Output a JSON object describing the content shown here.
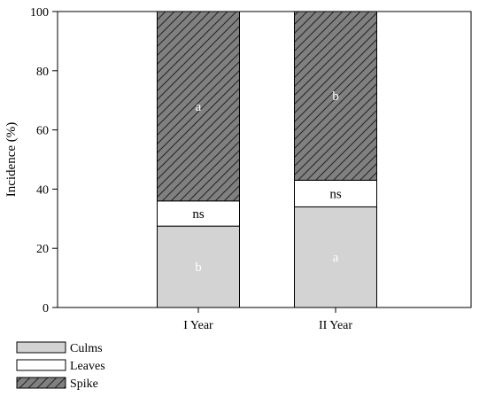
{
  "chart_data": {
    "type": "bar",
    "stacked": true,
    "categories": [
      "I Year",
      "II Year"
    ],
    "ylabel": "Incidence (%)",
    "xlabel": "",
    "ylim": [
      0,
      100
    ],
    "yticks": [
      0,
      20,
      40,
      60,
      80,
      100
    ],
    "grid": false,
    "legend_position": "bottom-left",
    "series": [
      {
        "name": "Culms",
        "values": [
          27.5,
          34
        ],
        "labels": [
          "b",
          "a"
        ],
        "color": "#d3d3d3",
        "hatch": false
      },
      {
        "name": "Leaves",
        "values": [
          8.5,
          9
        ],
        "labels": [
          "ns",
          "ns"
        ],
        "color": "#ffffff",
        "hatch": false
      },
      {
        "name": "Spike",
        "values": [
          64,
          57
        ],
        "labels": [
          "a",
          "b"
        ],
        "color": "#808080",
        "hatch": true
      }
    ]
  }
}
